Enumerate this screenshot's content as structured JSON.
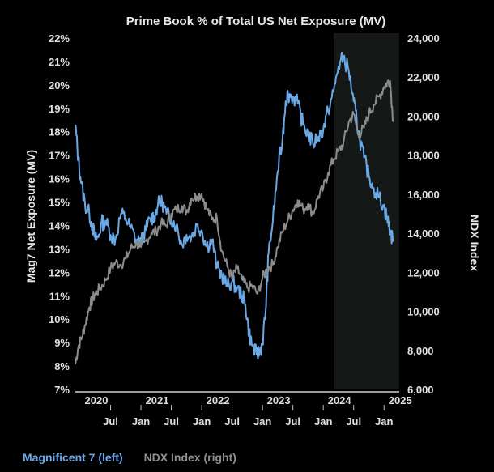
{
  "colors": {
    "background": "#000000",
    "mag7": "#6aa9e6",
    "ndx": "#8c8c8c",
    "shade": "#141816",
    "text": "#e8e8e8",
    "legend_ndx_text": "#8f8f8f"
  },
  "legend": {
    "mag7_label": "Magnificent 7 (left)",
    "ndx_label": "NDX Index (right)"
  },
  "chart_data": {
    "type": "line",
    "title": "Prime Book % of Total US Net Exposure (MV)",
    "ylabel_left": "Mag7 Net Exposure (MV)",
    "ylabel_right": "NDX Index",
    "ylim_left": [
      7,
      22
    ],
    "ylim_right": [
      6000,
      24000
    ],
    "xlim": [
      2019.92,
      2025.25
    ],
    "left_ticks": [
      "22%",
      "21%",
      "20%",
      "19%",
      "18%",
      "17%",
      "16%",
      "15%",
      "14%",
      "13%",
      "12%",
      "11%",
      "10%",
      "9%",
      "8%",
      "7%"
    ],
    "right_ticks": [
      "24,000",
      "22,000",
      "20,000",
      "18,000",
      "16,000",
      "14,000",
      "12,000",
      "10,000",
      "8,000",
      "6,000"
    ],
    "year_labels": [
      {
        "year": 2020.0,
        "label": "2020"
      },
      {
        "year": 2021.0,
        "label": "2021"
      },
      {
        "year": 2022.0,
        "label": "2022"
      },
      {
        "year": 2023.0,
        "label": "2023"
      },
      {
        "year": 2024.0,
        "label": "2024"
      },
      {
        "year": 2025.0,
        "label": "2025"
      }
    ],
    "month_labels": [
      {
        "year": 2020.5,
        "label": "Jul"
      },
      {
        "year": 2021.0,
        "label": "Jan"
      },
      {
        "year": 2021.5,
        "label": "Jul"
      },
      {
        "year": 2022.0,
        "label": "Jan"
      },
      {
        "year": 2022.5,
        "label": "Jul"
      },
      {
        "year": 2023.0,
        "label": "Jan"
      },
      {
        "year": 2023.5,
        "label": "Jul"
      },
      {
        "year": 2024.0,
        "label": "Jan"
      },
      {
        "year": 2024.5,
        "label": "Jul"
      },
      {
        "year": 2025.0,
        "label": "Jan"
      }
    ],
    "shaded_region": [
      2024.17,
      2025.25
    ],
    "series": [
      {
        "name": "Magnificent 7",
        "axis": "left",
        "x": [
          2019.92,
          2019.97,
          2020.02,
          2020.08,
          2020.15,
          2020.2,
          2020.25,
          2020.3,
          2020.35,
          2020.42,
          2020.5,
          2020.58,
          2020.67,
          2020.75,
          2020.83,
          2020.92,
          2021.0,
          2021.08,
          2021.15,
          2021.22,
          2021.28,
          2021.35,
          2021.42,
          2021.5,
          2021.58,
          2021.67,
          2021.75,
          2021.83,
          2021.92,
          2022.0,
          2022.08,
          2022.17,
          2022.25,
          2022.33,
          2022.42,
          2022.5,
          2022.58,
          2022.67,
          2022.72,
          2022.78,
          2022.83,
          2022.9,
          2022.95,
          2023.0,
          2023.05,
          2023.1,
          2023.17,
          2023.25,
          2023.33,
          2023.38,
          2023.42,
          2023.5,
          2023.58,
          2023.67,
          2023.75,
          2023.83,
          2023.92,
          2024.0,
          2024.08,
          2024.17,
          2024.25,
          2024.33,
          2024.42,
          2024.5,
          2024.55,
          2024.6,
          2024.67,
          2024.75,
          2024.83,
          2024.92,
          2025.0,
          2025.05,
          2025.1,
          2025.15
        ],
        "values": [
          18.3,
          16.8,
          15.8,
          14.9,
          14.5,
          14.0,
          13.4,
          13.5,
          14.1,
          14.2,
          13.6,
          13.4,
          14.5,
          14.3,
          13.9,
          13.4,
          13.3,
          13.8,
          14.3,
          14.4,
          14.9,
          15.0,
          14.5,
          14.3,
          14.0,
          13.2,
          13.6,
          13.5,
          14.0,
          13.8,
          13.1,
          13.4,
          12.2,
          11.9,
          11.4,
          11.6,
          11.3,
          11.0,
          10.6,
          9.4,
          8.9,
          8.5,
          8.6,
          9.0,
          10.3,
          12.8,
          14.2,
          16.3,
          17.7,
          19.3,
          19.6,
          19.5,
          19.2,
          18.3,
          17.9,
          17.5,
          17.8,
          18.1,
          18.9,
          19.7,
          20.8,
          21.2,
          20.6,
          19.3,
          18.5,
          17.7,
          16.9,
          16.1,
          15.6,
          15.2,
          14.8,
          14.3,
          13.8,
          13.3
        ]
      },
      {
        "name": "NDX Index",
        "axis": "right",
        "x": [
          2019.92,
          2019.97,
          2020.03,
          2020.08,
          2020.15,
          2020.2,
          2020.25,
          2020.33,
          2020.42,
          2020.5,
          2020.58,
          2020.67,
          2020.75,
          2020.83,
          2020.92,
          2021.0,
          2021.08,
          2021.17,
          2021.25,
          2021.33,
          2021.42,
          2021.5,
          2021.58,
          2021.67,
          2021.75,
          2021.83,
          2021.92,
          2022.0,
          2022.08,
          2022.17,
          2022.25,
          2022.33,
          2022.42,
          2022.5,
          2022.58,
          2022.67,
          2022.75,
          2022.83,
          2022.92,
          2023.0,
          2023.08,
          2023.17,
          2023.25,
          2023.33,
          2023.42,
          2023.5,
          2023.58,
          2023.67,
          2023.75,
          2023.83,
          2023.92,
          2024.0,
          2024.08,
          2024.17,
          2024.25,
          2024.33,
          2024.42,
          2024.5,
          2024.58,
          2024.67,
          2024.75,
          2024.83,
          2024.92,
          2025.0,
          2025.05,
          2025.1,
          2025.15
        ],
        "values": [
          7300,
          8200,
          8700,
          9300,
          10200,
          10600,
          10900,
          11200,
          11600,
          12200,
          12500,
          12400,
          12700,
          13200,
          13500,
          13300,
          13600,
          14000,
          14100,
          14500,
          14400,
          15000,
          15200,
          15400,
          15100,
          15800,
          15900,
          16000,
          15300,
          14700,
          14800,
          13100,
          12300,
          11700,
          12200,
          11600,
          11200,
          11300,
          10900,
          11700,
          12200,
          12400,
          13300,
          14100,
          14700,
          15200,
          15700,
          15200,
          15500,
          15000,
          15900,
          16300,
          17100,
          17800,
          18200,
          18600,
          19700,
          20100,
          19000,
          19400,
          20100,
          20600,
          21000,
          21500,
          21700,
          21800,
          19700
        ]
      }
    ]
  }
}
